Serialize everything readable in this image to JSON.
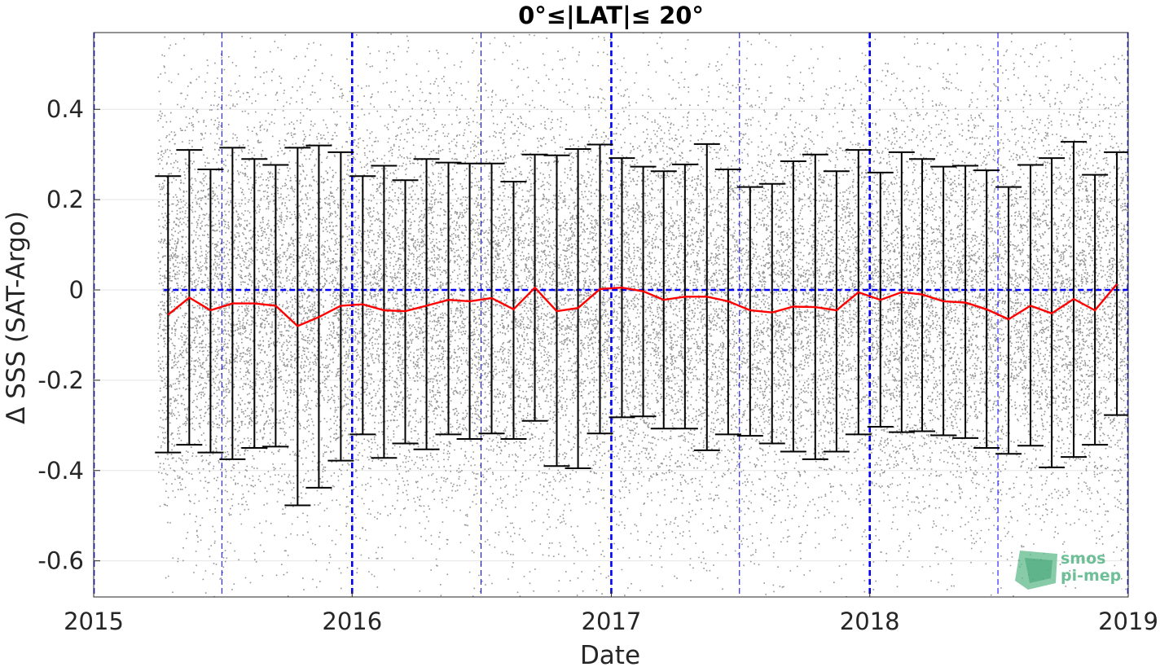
{
  "chart_data": {
    "type": "scatter",
    "title": "0°≤|LAT|≤ 20°",
    "xlabel": "Date",
    "ylabel": "Δ SSS (SAT-Argo)",
    "xlim": [
      "2015-01-01",
      "2019-01-01"
    ],
    "ylim": [
      -0.68,
      0.57
    ],
    "x_ticks": [
      "2015",
      "2016",
      "2017",
      "2018",
      "2019"
    ],
    "y_ticks": [
      0.4,
      0.2,
      0,
      -0.2,
      -0.4,
      -0.6
    ],
    "y_tick_labels": [
      "0.4",
      "0.2",
      "0",
      "-0.2",
      "-0.4",
      "-0.6"
    ],
    "grid": true,
    "colors": {
      "scatter": "#808080",
      "mean_line": "#ff0000",
      "error_bar": "#000000",
      "reference_lines": "#0000ff",
      "grid": "#e6e6e6"
    },
    "year_boundaries": [
      "2015-01-01",
      "2016-01-01",
      "2017-01-01",
      "2018-01-01",
      "2019-01-01"
    ],
    "mid_year_lines": [
      "2015-07-01",
      "2016-07-01",
      "2017-07-01",
      "2018-07-01"
    ],
    "zero_line": 0,
    "scatter_extent": {
      "start": "2015-04-01",
      "end": "2019-01-01",
      "y_range": [
        -0.68,
        0.57
      ]
    },
    "series": [
      {
        "type": "errorbar",
        "x": [
          "2015-04-16",
          "2015-05-16",
          "2015-06-15",
          "2015-07-16",
          "2015-08-16",
          "2015-09-15",
          "2015-10-16",
          "2015-11-15",
          "2015-12-16",
          "2016-01-16",
          "2016-02-15",
          "2016-03-16",
          "2016-04-15",
          "2016-05-16",
          "2016-06-15",
          "2016-07-16",
          "2016-08-16",
          "2016-09-15",
          "2016-10-16",
          "2016-11-15",
          "2016-12-16",
          "2017-01-16",
          "2017-02-15",
          "2017-03-16",
          "2017-04-15",
          "2017-05-16",
          "2017-06-15",
          "2017-07-16",
          "2017-08-16",
          "2017-09-15",
          "2017-10-16",
          "2017-11-15",
          "2017-12-16",
          "2018-01-16",
          "2018-02-15",
          "2018-03-16",
          "2018-04-15",
          "2018-05-16",
          "2018-06-15",
          "2018-07-16",
          "2018-08-16",
          "2018-09-15",
          "2018-10-16",
          "2018-11-15",
          "2018-12-16"
        ],
        "mean": [
          -0.055,
          -0.017,
          -0.045,
          -0.03,
          -0.03,
          -0.035,
          -0.08,
          -0.06,
          -0.035,
          -0.032,
          -0.045,
          -0.047,
          -0.035,
          -0.022,
          -0.025,
          -0.018,
          -0.043,
          0.005,
          -0.047,
          -0.04,
          0.002,
          0.005,
          -0.003,
          -0.022,
          -0.015,
          -0.015,
          -0.025,
          -0.045,
          -0.05,
          -0.037,
          -0.038,
          -0.045,
          -0.005,
          -0.022,
          -0.005,
          -0.01,
          -0.025,
          -0.028,
          -0.043,
          -0.065,
          -0.035,
          -0.052,
          -0.02,
          -0.045,
          0.013
        ],
        "upper": [
          0.252,
          0.31,
          0.267,
          0.315,
          0.29,
          0.277,
          0.315,
          0.32,
          0.305,
          0.252,
          0.275,
          0.243,
          0.29,
          0.282,
          0.28,
          0.28,
          0.24,
          0.3,
          0.298,
          0.312,
          0.322,
          0.292,
          0.273,
          0.263,
          0.278,
          0.323,
          0.267,
          0.228,
          0.235,
          0.285,
          0.3,
          0.263,
          0.31,
          0.26,
          0.305,
          0.29,
          0.273,
          0.275,
          0.265,
          0.228,
          0.277,
          0.292,
          0.328,
          0.255,
          0.305
        ],
        "lower": [
          -0.36,
          -0.343,
          -0.36,
          -0.375,
          -0.35,
          -0.347,
          -0.477,
          -0.438,
          -0.378,
          -0.32,
          -0.372,
          -0.34,
          -0.353,
          -0.32,
          -0.33,
          -0.318,
          -0.33,
          -0.29,
          -0.39,
          -0.395,
          -0.318,
          -0.282,
          -0.28,
          -0.307,
          -0.307,
          -0.355,
          -0.32,
          -0.323,
          -0.34,
          -0.358,
          -0.375,
          -0.358,
          -0.32,
          -0.303,
          -0.315,
          -0.313,
          -0.322,
          -0.328,
          -0.35,
          -0.363,
          -0.345,
          -0.393,
          -0.37,
          -0.343,
          -0.277
        ]
      }
    ]
  },
  "logo": {
    "line1": "smos",
    "line2": "pi-mep"
  }
}
